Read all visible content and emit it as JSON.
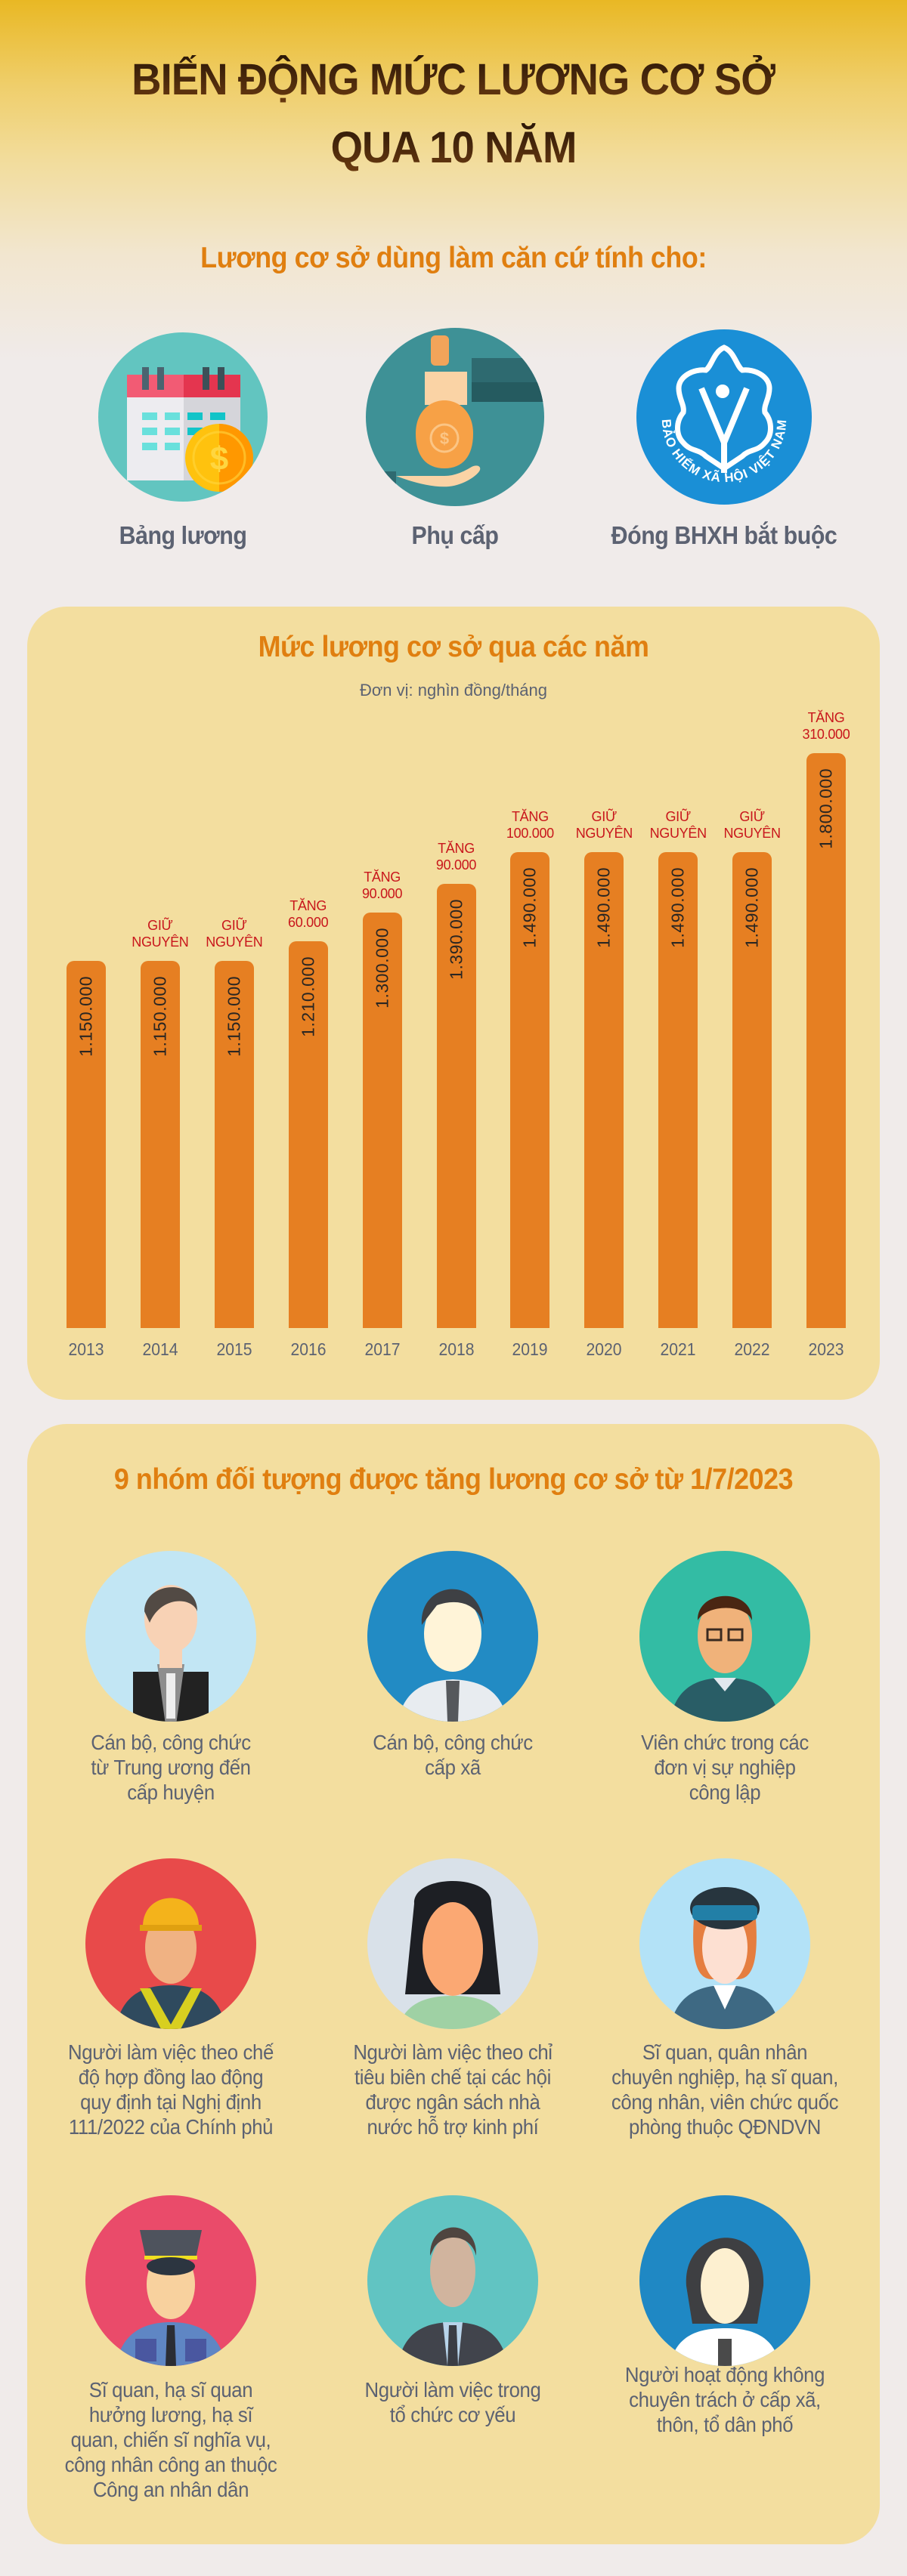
{
  "header": {
    "title_line1": "BIẾN ĐỘNG MỨC LƯƠNG CƠ SỞ",
    "title_line2": "QUA 10 NĂM"
  },
  "uses": {
    "heading": "Lương cơ sở dùng làm căn cứ tính cho:",
    "items": [
      {
        "label": "Bảng lương",
        "icon": "calendar-coin-icon",
        "color": "#62c5c0"
      },
      {
        "label": "Phụ cấp",
        "icon": "money-bag-handover-icon",
        "color": "#3e9196"
      },
      {
        "label": "Đóng BHXH bắt buộc",
        "icon": "vietnam-social-insurance-logo",
        "color": "#1a8fd6",
        "logo_text": "BẢO HIỂM XÃ HỘI VIỆT NAM"
      }
    ]
  },
  "chart_section": {
    "title": "Mức lương cơ sở qua các năm",
    "unit": "Đơn vị: nghìn đồng/tháng"
  },
  "chart_data": {
    "type": "bar",
    "title": "Mức lương cơ sở qua các năm",
    "subtitle": "Đơn vị: nghìn đồng/tháng",
    "xlabel": "",
    "ylabel": "",
    "categories": [
      "2013",
      "2014",
      "2015",
      "2016",
      "2017",
      "2018",
      "2019",
      "2020",
      "2021",
      "2022",
      "2023"
    ],
    "values": [
      1150000,
      1150000,
      1150000,
      1210000,
      1300000,
      1390000,
      1490000,
      1490000,
      1490000,
      1490000,
      1800000
    ],
    "value_labels": [
      "1.150.000",
      "1.150.000",
      "1.150.000",
      "1.210.000",
      "1.300.000",
      "1.390.000",
      "1.490.000",
      "1.490.000",
      "1.490.000",
      "1.490.000",
      "1.800.000"
    ],
    "annotations": [
      {
        "line1": "",
        "line2": ""
      },
      {
        "line1": "GIỮ",
        "line2": "NGUYÊN"
      },
      {
        "line1": "GIỮ",
        "line2": "NGUYÊN"
      },
      {
        "line1": "TĂNG",
        "line2": "60.000"
      },
      {
        "line1": "TĂNG",
        "line2": "90.000"
      },
      {
        "line1": "TĂNG",
        "line2": "90.000"
      },
      {
        "line1": "TĂNG",
        "line2": "100.000"
      },
      {
        "line1": "GIỮ",
        "line2": "NGUYÊN"
      },
      {
        "line1": "GIỮ",
        "line2": "NGUYÊN"
      },
      {
        "line1": "GIỮ",
        "line2": "NGUYÊN"
      },
      {
        "line1": "TĂNG",
        "line2": "310.000"
      }
    ],
    "bar_color": "#e67f22",
    "annotation_color": "#c8161c",
    "grid": false,
    "legend": "none",
    "ylim": [
      0,
      1800000
    ]
  },
  "groups_section": {
    "title": "9 nhóm đối tượng được tăng lương cơ sở từ 1/7/2023",
    "groups": [
      {
        "label_lines": [
          "Cán bộ, công chức",
          "từ Trung ương đến",
          "cấp huyện"
        ],
        "avatar": "man-vest-avatar",
        "bg": "#c2e6f4"
      },
      {
        "label_lines": [
          "Cán bộ, công chức",
          "cấp xã"
        ],
        "avatar": "man-tie-avatar",
        "bg": "#228bc4"
      },
      {
        "label_lines": [
          "Viên chức trong các",
          "đơn vị sự nghiệp",
          "công lập"
        ],
        "avatar": "man-glasses-avatar",
        "bg": "#33bca4"
      },
      {
        "label_lines": [
          "Người làm việc theo chế",
          "độ hợp đồng lao động",
          "quy định tại Nghị định",
          "111/2022 của Chính phủ"
        ],
        "avatar": "construction-worker-avatar",
        "bg": "#e84a4a"
      },
      {
        "label_lines": [
          "Người làm việc theo chỉ",
          "tiêu biên chế tại các hội",
          "được ngân sách nhà",
          "nước hỗ trợ kinh phí"
        ],
        "avatar": "woman-long-hair-avatar",
        "bg": "#d9e1e9"
      },
      {
        "label_lines": [
          "Sĩ quan, quân nhân",
          "chuyên nghiệp, hạ sĩ quan,",
          "công nhân, viên chức quốc",
          "phòng thuộc QĐNDVN"
        ],
        "avatar": "female-officer-avatar",
        "bg": "#b3e2f7"
      },
      {
        "label_lines": [
          "Sĩ quan, hạ sĩ quan",
          "hưởng lương, hạ sĩ",
          "quan, chiến sĩ nghĩa vụ,",
          "công nhân công an thuộc",
          "Công an nhân dân"
        ],
        "avatar": "police-officer-avatar",
        "bg": "#ea4b6a"
      },
      {
        "label_lines": [
          "Người làm việc trong",
          "tổ chức cơ yếu"
        ],
        "avatar": "man-suit-avatar",
        "bg": "#61c4c2"
      },
      {
        "label_lines": [
          "Người hoạt động không",
          "chuyên trách ở cấp xã,",
          "thôn, tổ dân phố"
        ],
        "avatar": "woman-short-hair-avatar",
        "bg": "#1f88c4"
      }
    ]
  }
}
